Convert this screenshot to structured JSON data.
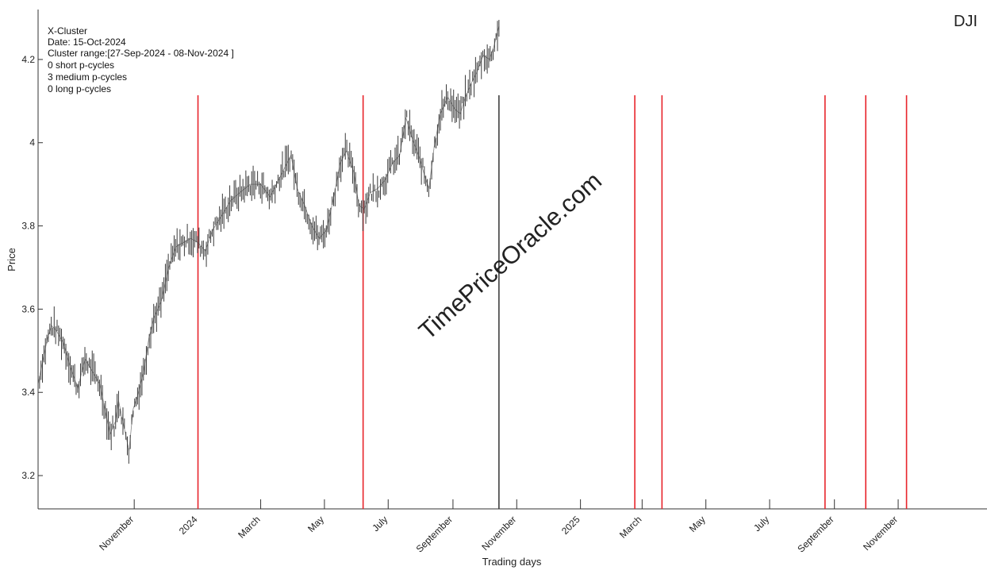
{
  "chart_data": {
    "type": "line",
    "symbol": "DJI",
    "watermark": "TimePriceOracle.com",
    "xlabel": "Trading days",
    "ylabel": "Price",
    "info_lines": [
      "X-Cluster",
      "Date: 15-Oct-2024",
      "Cluster range:[27-Sep-2024 - 08-Nov-2024 ]",
      "0 short p-cycles",
      "3 medium p-cycles",
      "0 long p-cycles"
    ],
    "xlim": [
      "2023-08-01",
      "2026-01-25"
    ],
    "ylim": [
      3.12,
      4.32
    ],
    "yticks": [
      3.2,
      3.4,
      3.6,
      3.8,
      4,
      4.2
    ],
    "xticks": [
      {
        "label": "November",
        "date": "2023-11-01"
      },
      {
        "label": "2024",
        "date": "2024-01-01"
      },
      {
        "label": "March",
        "date": "2024-03-01"
      },
      {
        "label": "May",
        "date": "2024-05-01"
      },
      {
        "label": "July",
        "date": "2024-07-01"
      },
      {
        "label": "September",
        "date": "2024-09-01"
      },
      {
        "label": "November",
        "date": "2024-11-01"
      },
      {
        "label": "2025",
        "date": "2025-01-01"
      },
      {
        "label": "March",
        "date": "2025-03-01"
      },
      {
        "label": "May",
        "date": "2025-05-01"
      },
      {
        "label": "July",
        "date": "2025-07-01"
      },
      {
        "label": "September",
        "date": "2025-09-01"
      },
      {
        "label": "November",
        "date": "2025-11-01"
      }
    ],
    "current_date": "2024-10-15",
    "cycle_dates": [
      "2024-01-01",
      "2024-06-07",
      "2025-02-22",
      "2025-03-20",
      "2025-08-23",
      "2025-10-01",
      "2025-11-09"
    ],
    "price_series": {
      "x": [
        "2023-08-01",
        "2023-08-05",
        "2023-08-10",
        "2023-08-14",
        "2023-08-18",
        "2023-08-25",
        "2023-09-01",
        "2023-09-08",
        "2023-09-15",
        "2023-09-22",
        "2023-09-29",
        "2023-10-04",
        "2023-10-09",
        "2023-10-14",
        "2023-10-17",
        "2023-10-22",
        "2023-10-27",
        "2023-10-31",
        "2023-11-04",
        "2023-11-10",
        "2023-11-15",
        "2023-11-20",
        "2023-11-27",
        "2023-12-04",
        "2023-12-11",
        "2023-12-18",
        "2023-12-25",
        "2024-01-01",
        "2024-01-08",
        "2024-01-15",
        "2024-01-25",
        "2024-02-01",
        "2024-02-10",
        "2024-02-20",
        "2024-03-01",
        "2024-03-10",
        "2024-03-20",
        "2024-03-30",
        "2024-04-05",
        "2024-04-12",
        "2024-04-19",
        "2024-04-26",
        "2024-05-03",
        "2024-05-10",
        "2024-05-16",
        "2024-05-22",
        "2024-05-29",
        "2024-06-03",
        "2024-06-08",
        "2024-06-14",
        "2024-06-21",
        "2024-06-28",
        "2024-07-05",
        "2024-07-12",
        "2024-07-18",
        "2024-07-24",
        "2024-07-30",
        "2024-08-05",
        "2024-08-09",
        "2024-08-14",
        "2024-08-20",
        "2024-08-27",
        "2024-09-03",
        "2024-09-08",
        "2024-09-13",
        "2024-09-18",
        "2024-09-24",
        "2024-09-30",
        "2024-10-06",
        "2024-10-10",
        "2024-10-15"
      ],
      "y": [
        3.42,
        3.47,
        3.53,
        3.56,
        3.55,
        3.52,
        3.46,
        3.41,
        3.48,
        3.45,
        3.42,
        3.36,
        3.3,
        3.33,
        3.38,
        3.32,
        3.26,
        3.36,
        3.39,
        3.45,
        3.53,
        3.58,
        3.62,
        3.7,
        3.75,
        3.76,
        3.77,
        3.76,
        3.74,
        3.79,
        3.83,
        3.86,
        3.88,
        3.9,
        3.9,
        3.87,
        3.92,
        3.97,
        3.89,
        3.85,
        3.8,
        3.77,
        3.79,
        3.87,
        3.95,
        3.98,
        3.93,
        3.85,
        3.84,
        3.88,
        3.89,
        3.91,
        3.95,
        3.97,
        4.06,
        4.01,
        3.97,
        3.92,
        3.89,
        3.99,
        4.07,
        4.11,
        4.08,
        4.07,
        4.11,
        4.14,
        4.17,
        4.21,
        4.2,
        4.23,
        4.28
      ]
    }
  }
}
